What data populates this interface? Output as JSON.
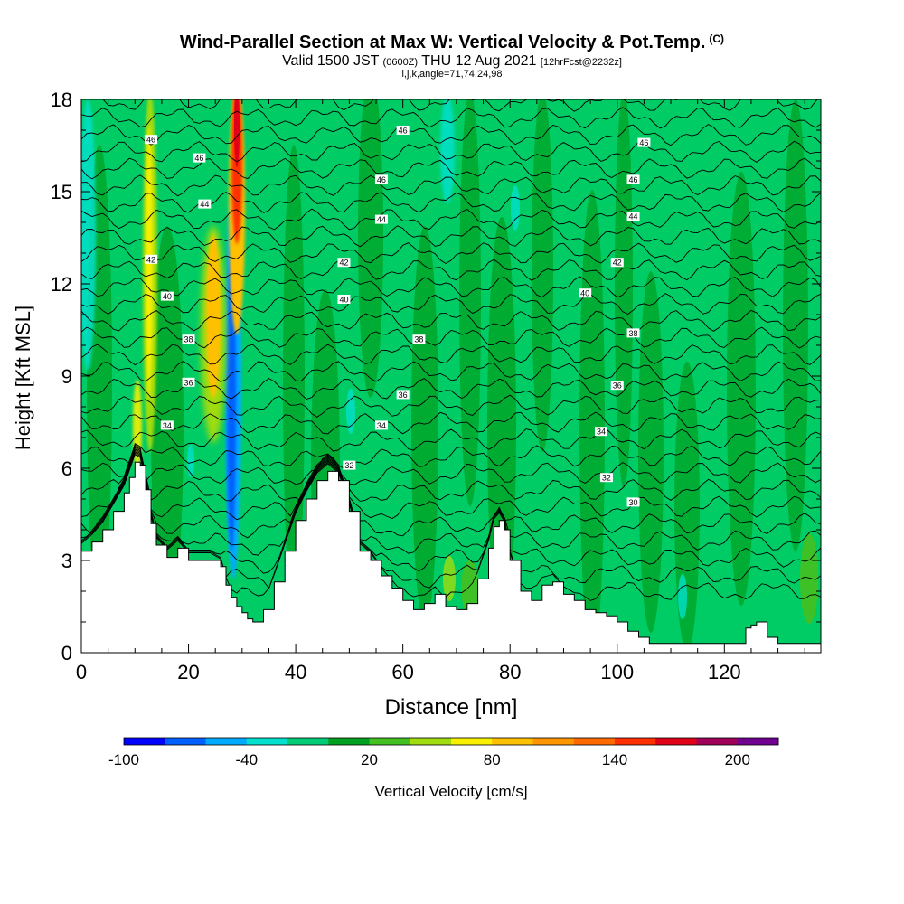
{
  "title": {
    "main": "Wind-Parallel Section at Max W: Vertical Velocity & Pot.Temp.",
    "mark": "(C)",
    "valid_a": "Valid 1500 JST",
    "valid_utc": "(0600Z)",
    "valid_b": "THU 12 Aug 2021",
    "forecast": "[12hrFcst@2232z]",
    "indices": "i,j,k,angle=71,74,24,98"
  },
  "chart_data": {
    "type": "heatmap",
    "title": "Wind-Parallel Section at Max W: Vertical Velocity & Pot.Temp.",
    "xlabel": "Distance [nm]",
    "ylabel": "Height [Kft MSL]",
    "xlim": [
      0,
      138
    ],
    "ylim": [
      0,
      18
    ],
    "x_ticks": [
      0,
      20,
      40,
      60,
      80,
      100,
      120
    ],
    "y_ticks": [
      0,
      3,
      6,
      9,
      12,
      15,
      18
    ],
    "terrain": {
      "x": [
        0,
        2,
        4,
        6,
        8,
        9,
        10,
        11,
        12,
        13,
        14,
        16,
        18,
        20,
        22,
        24,
        26,
        27,
        28,
        29,
        30,
        31,
        32,
        34,
        36,
        38,
        40,
        42,
        44,
        46,
        48,
        50,
        52,
        54,
        56,
        58,
        60,
        62,
        64,
        66,
        68,
        70,
        72,
        74,
        76,
        77,
        78,
        79,
        80,
        82,
        84,
        86,
        88,
        90,
        92,
        94,
        96,
        98,
        100,
        102,
        104,
        106,
        108,
        110,
        112,
        114,
        116,
        118,
        120,
        122,
        124,
        125,
        126,
        128,
        130,
        132,
        134,
        136,
        138
      ],
      "height": [
        3.3,
        3.6,
        4.0,
        4.6,
        5.2,
        5.7,
        6.2,
        6.1,
        5.3,
        4.2,
        3.5,
        3.1,
        3.4,
        3.0,
        3.0,
        3.0,
        2.8,
        2.2,
        1.8,
        1.5,
        1.3,
        1.1,
        1.0,
        1.4,
        2.3,
        3.3,
        4.3,
        5.0,
        5.6,
        5.9,
        5.6,
        4.6,
        3.3,
        3.0,
        2.5,
        2.1,
        1.7,
        1.4,
        1.6,
        1.9,
        1.5,
        1.4,
        1.6,
        2.4,
        3.4,
        4.1,
        4.3,
        4.0,
        3.0,
        2.0,
        1.7,
        2.2,
        2.3,
        1.9,
        1.7,
        1.4,
        1.3,
        1.2,
        1.0,
        0.7,
        0.5,
        0.3,
        0.3,
        0.3,
        0.3,
        0.3,
        0.3,
        0.3,
        0.3,
        0.3,
        0.8,
        0.9,
        1.0,
        0.5,
        0.3,
        0.3,
        0.3,
        0.3,
        0.3
      ]
    },
    "vertical_velocity_features": [
      {
        "kind": "updraft",
        "x": 29,
        "y_range": [
          9,
          18
        ],
        "max_cm_s": 180
      },
      {
        "kind": "updraft",
        "x": 25,
        "y_range": [
          7,
          14
        ],
        "max_cm_s": 80
      },
      {
        "kind": "updraft",
        "x": 13,
        "y_range": [
          7,
          18
        ],
        "max_cm_s": 60
      },
      {
        "kind": "downdraft",
        "x": 28,
        "y_range": [
          3,
          12
        ],
        "max_cm_s": -70
      },
      {
        "kind": "downdraft",
        "x": 2,
        "y_range": [
          9,
          18
        ],
        "max_cm_s": -40
      },
      {
        "kind": "downdraft",
        "x": 69,
        "y_range": [
          14,
          18
        ],
        "max_cm_s": -40
      }
    ],
    "theta_contours": {
      "label": "Pot.Temp. (C)",
      "levels": [
        30,
        32,
        34,
        36,
        38,
        40,
        42,
        44,
        46
      ],
      "labels": [
        {
          "text": "46",
          "x": 13,
          "y": 16.7
        },
        {
          "text": "46",
          "x": 22,
          "y": 16.1
        },
        {
          "text": "44",
          "x": 23,
          "y": 14.6
        },
        {
          "text": "42",
          "x": 13,
          "y": 12.8
        },
        {
          "text": "40",
          "x": 16,
          "y": 11.6
        },
        {
          "text": "38",
          "x": 20,
          "y": 10.2
        },
        {
          "text": "36",
          "x": 20,
          "y": 8.8
        },
        {
          "text": "34",
          "x": 16,
          "y": 7.4
        },
        {
          "text": "46",
          "x": 60,
          "y": 17.0
        },
        {
          "text": "46",
          "x": 56,
          "y": 15.4
        },
        {
          "text": "44",
          "x": 56,
          "y": 14.1
        },
        {
          "text": "42",
          "x": 49,
          "y": 12.7
        },
        {
          "text": "40",
          "x": 49,
          "y": 11.5
        },
        {
          "text": "38",
          "x": 63,
          "y": 10.2
        },
        {
          "text": "36",
          "x": 60,
          "y": 8.4
        },
        {
          "text": "34",
          "x": 56,
          "y": 7.4
        },
        {
          "text": "32",
          "x": 50,
          "y": 6.1
        },
        {
          "text": "46",
          "x": 105,
          "y": 16.6
        },
        {
          "text": "46",
          "x": 103,
          "y": 15.4
        },
        {
          "text": "44",
          "x": 103,
          "y": 14.2
        },
        {
          "text": "42",
          "x": 100,
          "y": 12.7
        },
        {
          "text": "40",
          "x": 94,
          "y": 11.7
        },
        {
          "text": "38",
          "x": 103,
          "y": 10.4
        },
        {
          "text": "36",
          "x": 100,
          "y": 8.7
        },
        {
          "text": "34",
          "x": 97,
          "y": 7.2
        },
        {
          "text": "32",
          "x": 98,
          "y": 5.7
        },
        {
          "text": "30",
          "x": 103,
          "y": 4.9
        }
      ]
    },
    "colorbar": {
      "label": "Vertical Velocity [cm/s]",
      "range": [
        -100,
        220
      ],
      "tick_labels": [
        "-100",
        "-40",
        "20",
        "80",
        "140",
        "200"
      ],
      "tick_values": [
        -100,
        -40,
        20,
        80,
        140,
        200
      ],
      "colors": [
        "#0000ff",
        "#005fff",
        "#00aaff",
        "#00e0cc",
        "#00cc77",
        "#00a020",
        "#44c020",
        "#a0dc10",
        "#f8f000",
        "#ffc000",
        "#ff9600",
        "#ff6a00",
        "#ff3000",
        "#e00018",
        "#a00058",
        "#700090"
      ]
    },
    "grid": false,
    "legend": "bottom"
  }
}
